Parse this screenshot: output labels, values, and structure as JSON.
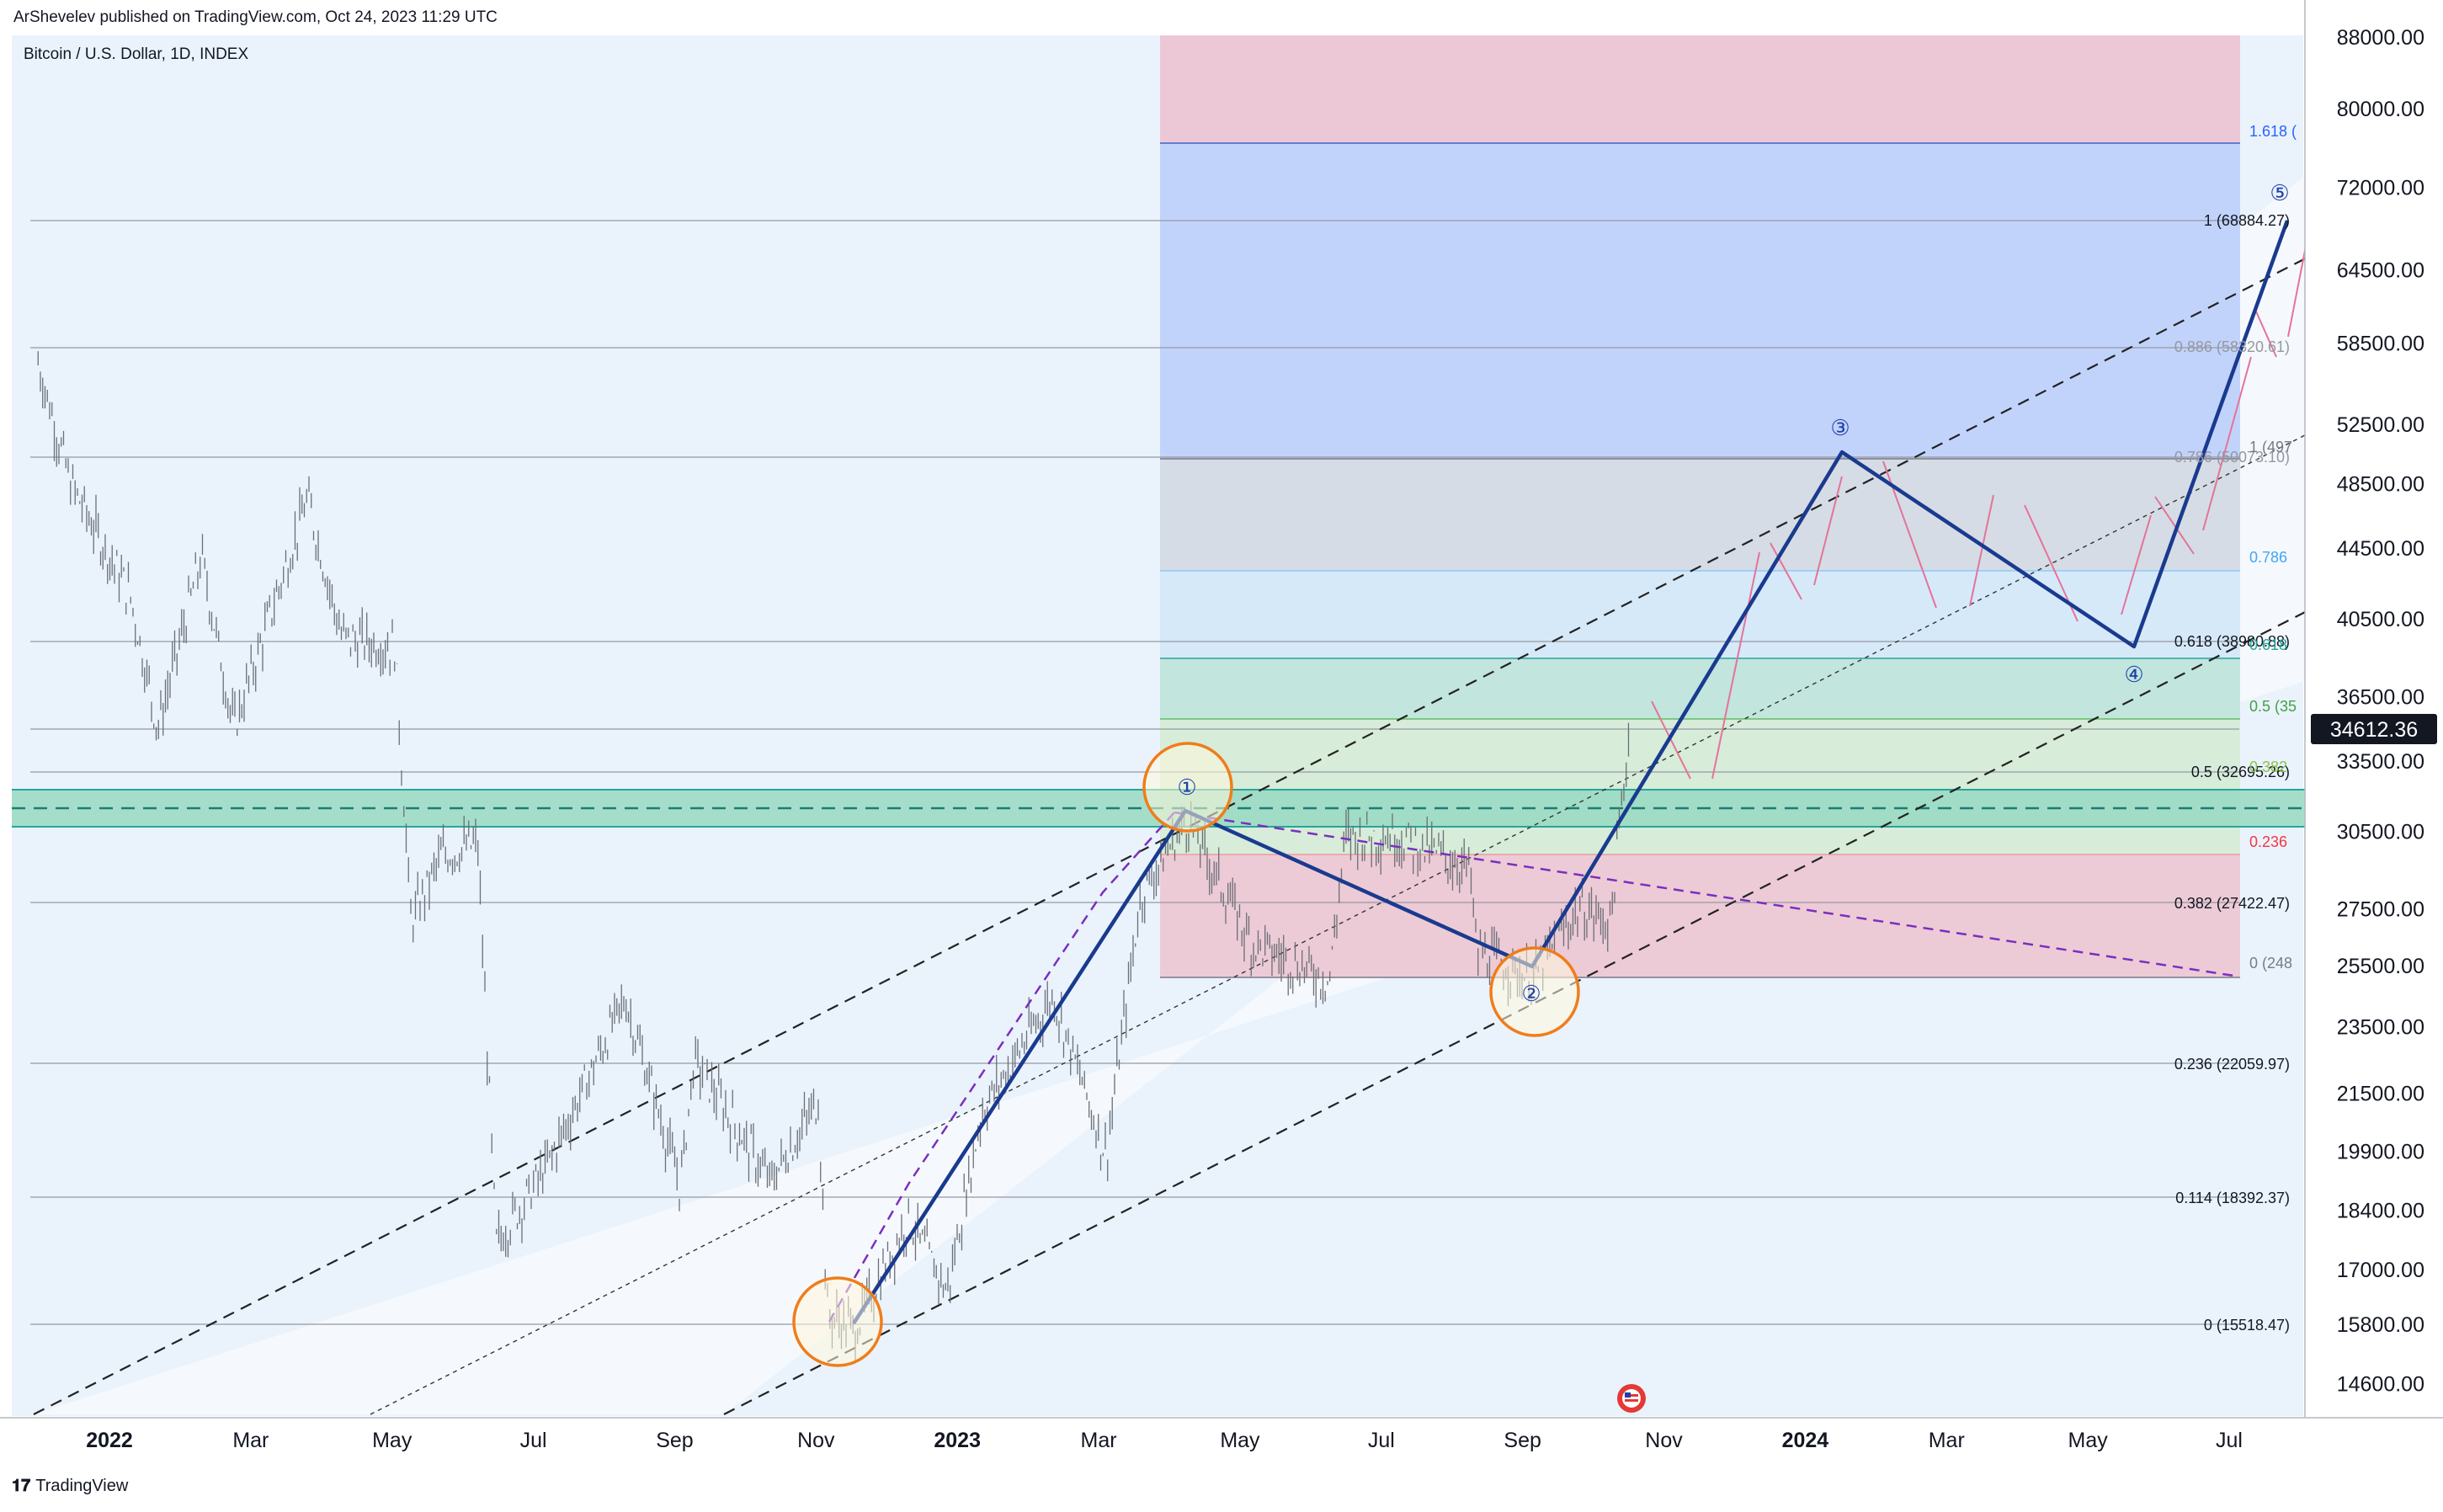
{
  "header": {
    "published": "ArShevelev published on TradingView.com, Oct 24, 2023 11:29 UTC"
  },
  "symbol": {
    "title": "Bitcoin / U.S. Dollar, 1D, INDEX"
  },
  "footer": {
    "brand": "TradingView",
    "logo_glyph": "𝟏𝟕"
  },
  "current_price": "34612.36",
  "colors": {
    "wave": "#1a3a8f",
    "orange": "#f07d1a",
    "support": "#26a69a",
    "pink": "#f48fb1",
    "purple": "#7b2fbe",
    "candle": "#787b86"
  },
  "fib_retracement_labels": [
    {
      "text": "0 (15518.47)",
      "price": 15518.47
    },
    {
      "text": "0.114 (18392.37)",
      "price": 18392.37
    },
    {
      "text": "0.236 (22059.97)",
      "price": 22059.97
    },
    {
      "text": "0.382 (27422.47)",
      "price": 27422.47
    },
    {
      "text": "0.5 (32695.26)",
      "price": 32695.26
    },
    {
      "text": "0.618 (38980.88)",
      "price": 38980.88
    },
    {
      "text": "0.786 (50073.10)",
      "price": 50073.1
    },
    {
      "text": "0.886 (58320.61)",
      "price": 58320.61
    },
    {
      "text": "1 (68884.27)",
      "price": 68884.27
    }
  ],
  "fib_extension_labels": [
    {
      "text": "1.618 (",
      "price": 76000,
      "color": "#2962ff"
    },
    {
      "text": "1 (497",
      "price": 49700,
      "color": "#787b86"
    },
    {
      "text": "0.786",
      "price": 43300,
      "color": "#42a5f5"
    },
    {
      "text": "0.618",
      "price": 38800,
      "color": "#26a69a"
    },
    {
      "text": "0.5 (35",
      "price": 35300,
      "color": "#43a047"
    },
    {
      "text": "0.382",
      "price": 32800,
      "color": "#8bc34a"
    },
    {
      "text": "0.236",
      "price": 29800,
      "color": "#f23645"
    },
    {
      "text": "0 (248",
      "price": 24900,
      "color": "#787b86"
    }
  ],
  "wave_labels": [
    "①",
    "②",
    "③",
    "④",
    "⑤"
  ],
  "chart_data": {
    "type": "candlestick",
    "title": "Bitcoin / U.S. Dollar, 1D, INDEX",
    "y_scale": "log",
    "ylim": [
      13200,
      88000
    ],
    "x_tick_labels": [
      "2022",
      "Mar",
      "May",
      "Jul",
      "Sep",
      "Nov",
      "2023",
      "Mar",
      "May",
      "Jul",
      "Sep",
      "Nov",
      "2024",
      "Mar",
      "May",
      "Jul"
    ],
    "y_tick_labels": [
      "14600.00",
      "15800.00",
      "17000.00",
      "18400.00",
      "19900.00",
      "21500.00",
      "23500.00",
      "25500.00",
      "27500.00",
      "30500.00",
      "33500.00",
      "36500.00",
      "40500.00",
      "44500.00",
      "48500.00",
      "52500.00",
      "58500.00",
      "64500.00",
      "72000.00",
      "80000.00",
      "88000.00"
    ],
    "last_price": 34612.36,
    "price_path": [
      [
        "2021-12-01",
        57000
      ],
      [
        "2021-12-15",
        48500
      ],
      [
        "2022-01-10",
        41800
      ],
      [
        "2022-01-22",
        35000
      ],
      [
        "2022-02-10",
        44000
      ],
      [
        "2022-02-24",
        35000
      ],
      [
        "2022-03-28",
        47500
      ],
      [
        "2022-04-12",
        39500
      ],
      [
        "2022-05-05",
        39000
      ],
      [
        "2022-05-12",
        27000
      ],
      [
        "2022-05-25",
        29500
      ],
      [
        "2022-06-10",
        30000
      ],
      [
        "2022-06-18",
        17600
      ],
      [
        "2022-07-10",
        19500
      ],
      [
        "2022-08-13",
        24400
      ],
      [
        "2022-09-06",
        19000
      ],
      [
        "2022-09-12",
        22500
      ],
      [
        "2022-10-15",
        19100
      ],
      [
        "2022-11-05",
        21300
      ],
      [
        "2022-11-09",
        16000
      ],
      [
        "2022-11-21",
        15700
      ],
      [
        "2022-12-14",
        18200
      ],
      [
        "2022-12-31",
        16500
      ],
      [
        "2023-01-15",
        21000
      ],
      [
        "2023-02-15",
        24500
      ],
      [
        "2023-03-10",
        19800
      ],
      [
        "2023-03-25",
        28000
      ],
      [
        "2023-04-14",
        31000
      ],
      [
        "2023-05-12",
        26300
      ],
      [
        "2023-06-15",
        25000
      ],
      [
        "2023-06-22",
        30300
      ],
      [
        "2023-07-15",
        30300
      ],
      [
        "2023-08-15",
        29000
      ],
      [
        "2023-08-18",
        26000
      ],
      [
        "2023-09-11",
        25000
      ],
      [
        "2023-10-01",
        27500
      ],
      [
        "2023-10-15",
        27000
      ],
      [
        "2023-10-23",
        34612
      ]
    ],
    "elliott_waves": [
      {
        "label": "start",
        "date": "2022-11-21",
        "price": 15500
      },
      {
        "label": "1",
        "date": "2023-04-14",
        "price": 31000
      },
      {
        "label": "2",
        "date": "2023-09-11",
        "price": 25000
      },
      {
        "label": "3",
        "date": "2024-01-25",
        "price": 50000
      },
      {
        "label": "4",
        "date": "2024-06-15",
        "price": 38900
      },
      {
        "label": "5",
        "date": "2024-07-30",
        "price": 68500
      }
    ],
    "support_zone": [
      30200,
      31600
    ]
  }
}
